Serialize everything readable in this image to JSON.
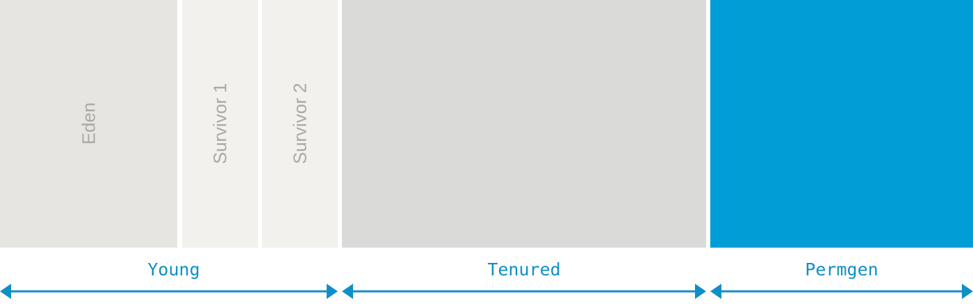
{
  "colors": {
    "eden": "#e6e5e2",
    "survivor": "#f2f1ee",
    "tenured": "#dadad9",
    "permgen": "#009dd6",
    "block_label": "#a9a8a5",
    "generation_label": "#0f8fc8",
    "arrow": "#0f8fc8"
  },
  "regions": {
    "eden": {
      "label": "Eden"
    },
    "survivor_1": {
      "label": "Survivor 1"
    },
    "survivor_2": {
      "label": "Survivor 2"
    },
    "tenured": {
      "label": ""
    },
    "permgen": {
      "label": ""
    }
  },
  "generations": {
    "young": {
      "label": "Young"
    },
    "tenured": {
      "label": "Tenured"
    },
    "permgen": {
      "label": "Permgen"
    }
  }
}
